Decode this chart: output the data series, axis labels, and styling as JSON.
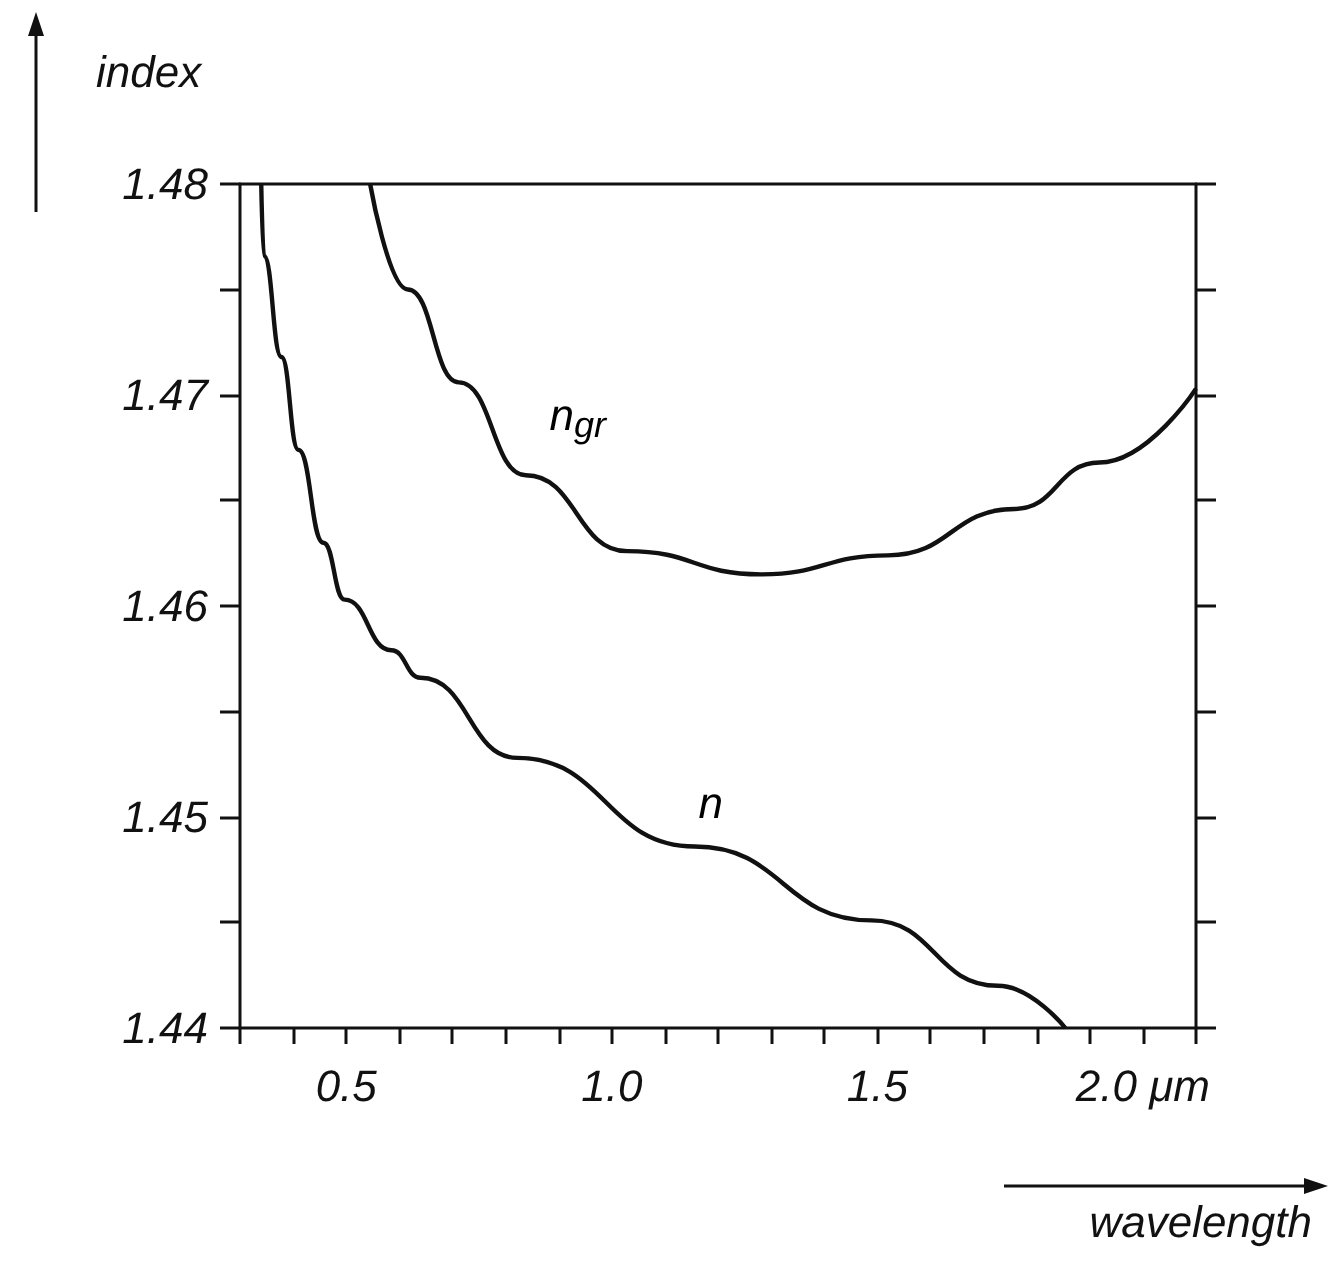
{
  "chart_data": {
    "type": "line",
    "xlabel": "wavelength",
    "ylabel": "index",
    "xlim": [
      0.3,
      2.1
    ],
    "ylim": [
      1.44,
      1.48
    ],
    "xticks": [
      {
        "value": 0.3,
        "label": null
      },
      {
        "value": 0.4,
        "label": null
      },
      {
        "value": 0.5,
        "label": "0.5"
      },
      {
        "value": 0.6,
        "label": null
      },
      {
        "value": 0.7,
        "label": null
      },
      {
        "value": 0.8,
        "label": null
      },
      {
        "value": 0.9,
        "label": null
      },
      {
        "value": 1.0,
        "label": "1.0"
      },
      {
        "value": 1.1,
        "label": null
      },
      {
        "value": 1.2,
        "label": null
      },
      {
        "value": 1.3,
        "label": null
      },
      {
        "value": 1.4,
        "label": null
      },
      {
        "value": 1.5,
        "label": "1.5"
      },
      {
        "value": 1.6,
        "label": null
      },
      {
        "value": 1.7,
        "label": null
      },
      {
        "value": 1.8,
        "label": null
      },
      {
        "value": 1.9,
        "label": null
      },
      {
        "value": 2.0,
        "label": "2.0 μm"
      },
      {
        "value": 2.1,
        "label": null
      }
    ],
    "yticks": [
      1.44,
      {
        "value": 1.445,
        "label": null
      },
      1.45,
      {
        "value": 1.455,
        "label": null
      },
      1.46,
      {
        "value": 1.465,
        "label": null
      },
      1.47,
      {
        "value": 1.475,
        "label": null
      },
      1.48
    ],
    "grid": false,
    "marker": "none",
    "line_style": "solid",
    "series": [
      {
        "name": "n",
        "color": "#111111",
        "x": [
          0.34,
          0.345,
          0.378,
          0.41,
          0.457,
          0.497,
          0.585,
          0.64,
          0.822,
          1.156,
          1.489,
          1.727,
          1.854
        ],
        "values": [
          1.48,
          1.4766,
          1.4718,
          1.4674,
          1.463,
          1.4603,
          1.4579,
          1.4566,
          1.4528,
          1.4486,
          1.4451,
          1.442,
          1.44
        ]
      },
      {
        "name": "n$_{gr}$",
        "color": "#111111",
        "x": [
          0.545,
          0.616,
          0.712,
          0.838,
          1.029,
          1.281,
          1.52,
          1.759,
          1.918,
          2.1
        ],
        "values": [
          1.48,
          1.475,
          1.4706,
          1.4662,
          1.4626,
          1.4615,
          1.4624,
          1.4646,
          1.4668,
          1.4703
        ]
      }
    ]
  }
}
